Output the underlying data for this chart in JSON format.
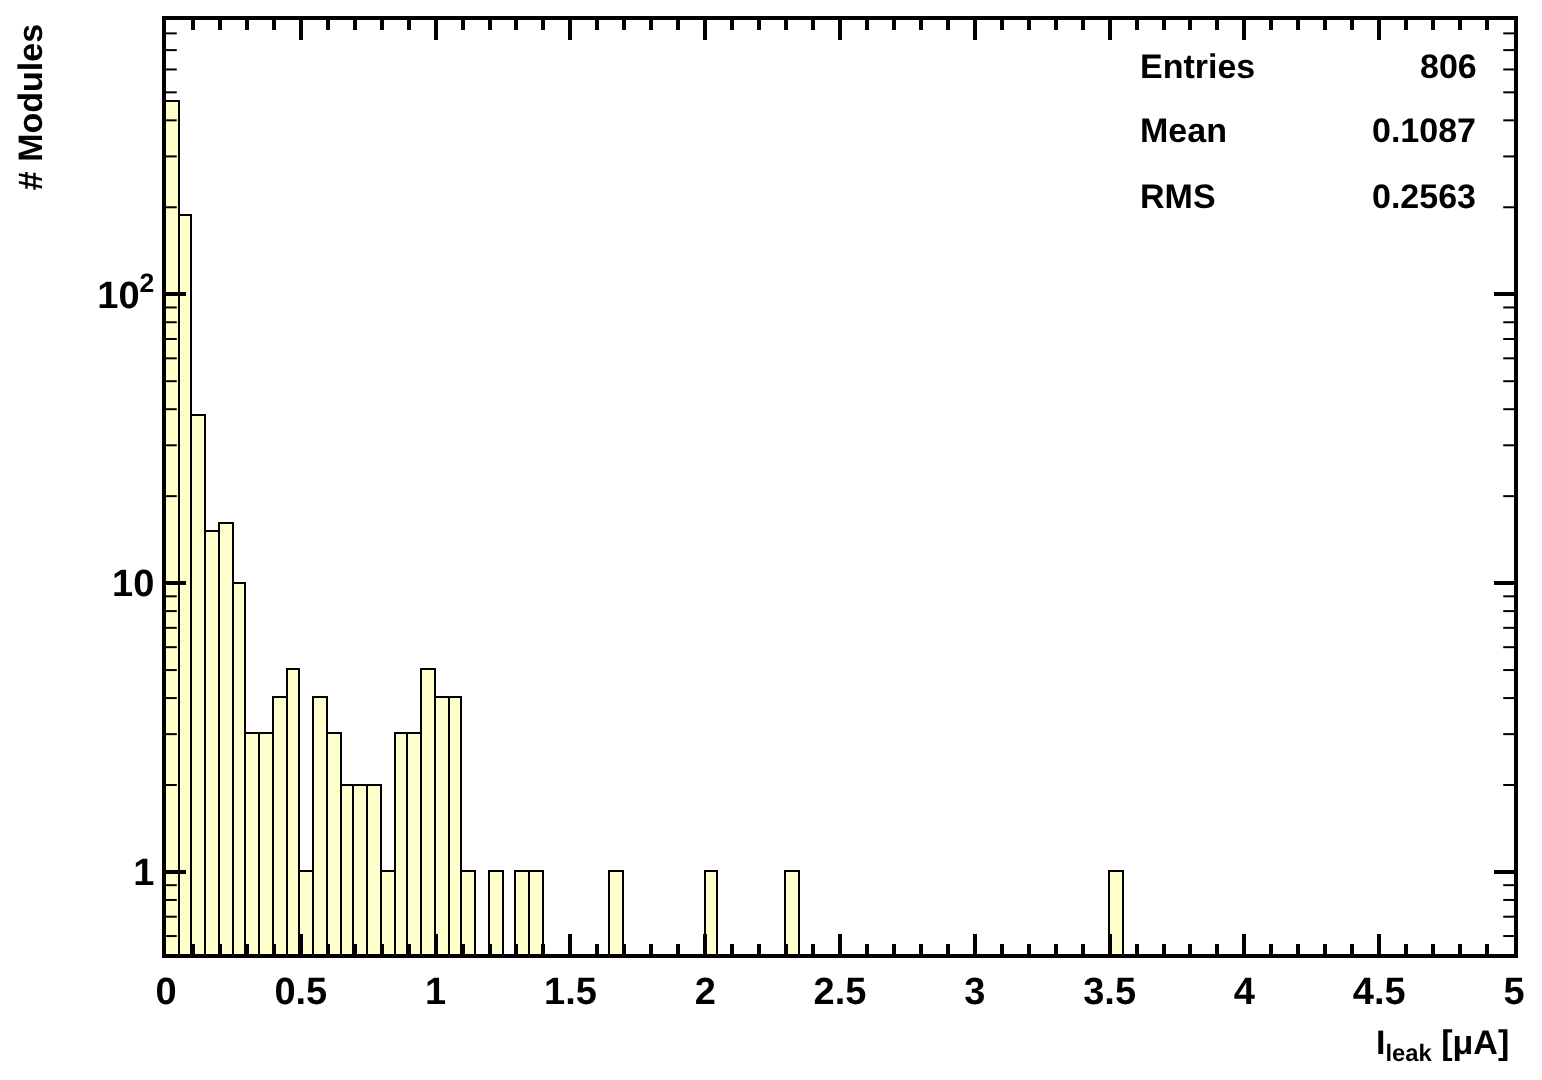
{
  "chart_data": {
    "type": "histogram",
    "xlabel": "I$_{leak}$ [μA]",
    "ylabel": "# Modules",
    "bins": [
      0,
      0.05,
      0.1,
      0.15,
      0.2,
      0.25,
      0.3,
      0.35,
      0.4,
      0.45,
      0.5,
      0.55,
      0.6,
      0.65,
      0.7,
      0.75,
      0.8,
      0.85,
      0.9,
      0.95,
      1,
      1.05,
      1.1,
      1.15,
      1.2,
      1.25,
      1.3,
      1.35,
      1.4,
      1.45,
      1.5,
      1.55,
      1.6,
      1.65,
      1.7,
      1.75,
      1.8,
      1.85,
      1.9,
      1.95,
      2,
      2.05,
      2.1,
      2.15,
      2.2,
      2.25,
      2.3,
      2.35,
      2.4,
      2.45,
      2.5,
      2.55,
      2.6,
      2.65,
      2.7,
      2.75,
      2.8,
      2.85,
      2.9,
      2.95,
      3,
      3.05,
      3.1,
      3.15,
      3.2,
      3.25,
      3.3,
      3.35,
      3.4,
      3.45,
      3.5,
      3.55,
      3.6,
      3.65,
      3.7,
      3.75,
      3.8,
      3.85,
      3.9,
      3.95,
      4,
      4.05,
      4.1,
      4.15,
      4.2,
      4.25,
      4.3,
      4.35,
      4.4,
      4.45,
      4.5,
      4.55,
      4.6,
      4.65,
      4.7,
      4.75,
      4.8,
      4.85,
      4.9,
      4.95,
      5
    ],
    "values": [
      465,
      186,
      38,
      15,
      16,
      10,
      3,
      3,
      4,
      5,
      1,
      4,
      3,
      2,
      2,
      2,
      1,
      3,
      3,
      5,
      4,
      4,
      1,
      null,
      1,
      null,
      1,
      1,
      null,
      null,
      null,
      null,
      null,
      1,
      null,
      null,
      null,
      null,
      null,
      null,
      1,
      null,
      null,
      null,
      null,
      null,
      1,
      null,
      null,
      null,
      null,
      null,
      null,
      null,
      null,
      null,
      null,
      null,
      null,
      null,
      null,
      null,
      null,
      null,
      null,
      null,
      null,
      null,
      null,
      null,
      1,
      null,
      null,
      null,
      null,
      null,
      null,
      null,
      null,
      null,
      null,
      null,
      null,
      null,
      null,
      null,
      null,
      null,
      null,
      null,
      null,
      null,
      null,
      null,
      null,
      null,
      null,
      null,
      null,
      null
    ],
    "color": "#ffffcc",
    "log": "y",
    "xlim": [
      0,
      5
    ],
    "xticks": [
      0,
      0.5,
      1,
      1.5,
      2,
      2.5,
      3,
      3.5,
      4,
      4.5,
      5
    ],
    "ylim": [
      0.52,
      890
    ],
    "yticks": [
      1,
      10,
      {
        "value": 100,
        "label": "10$^{2}$"
      }
    ],
    "annotations": [
      "Entries 806",
      "Mean 0.1087",
      "RMS 0.2563"
    ]
  }
}
